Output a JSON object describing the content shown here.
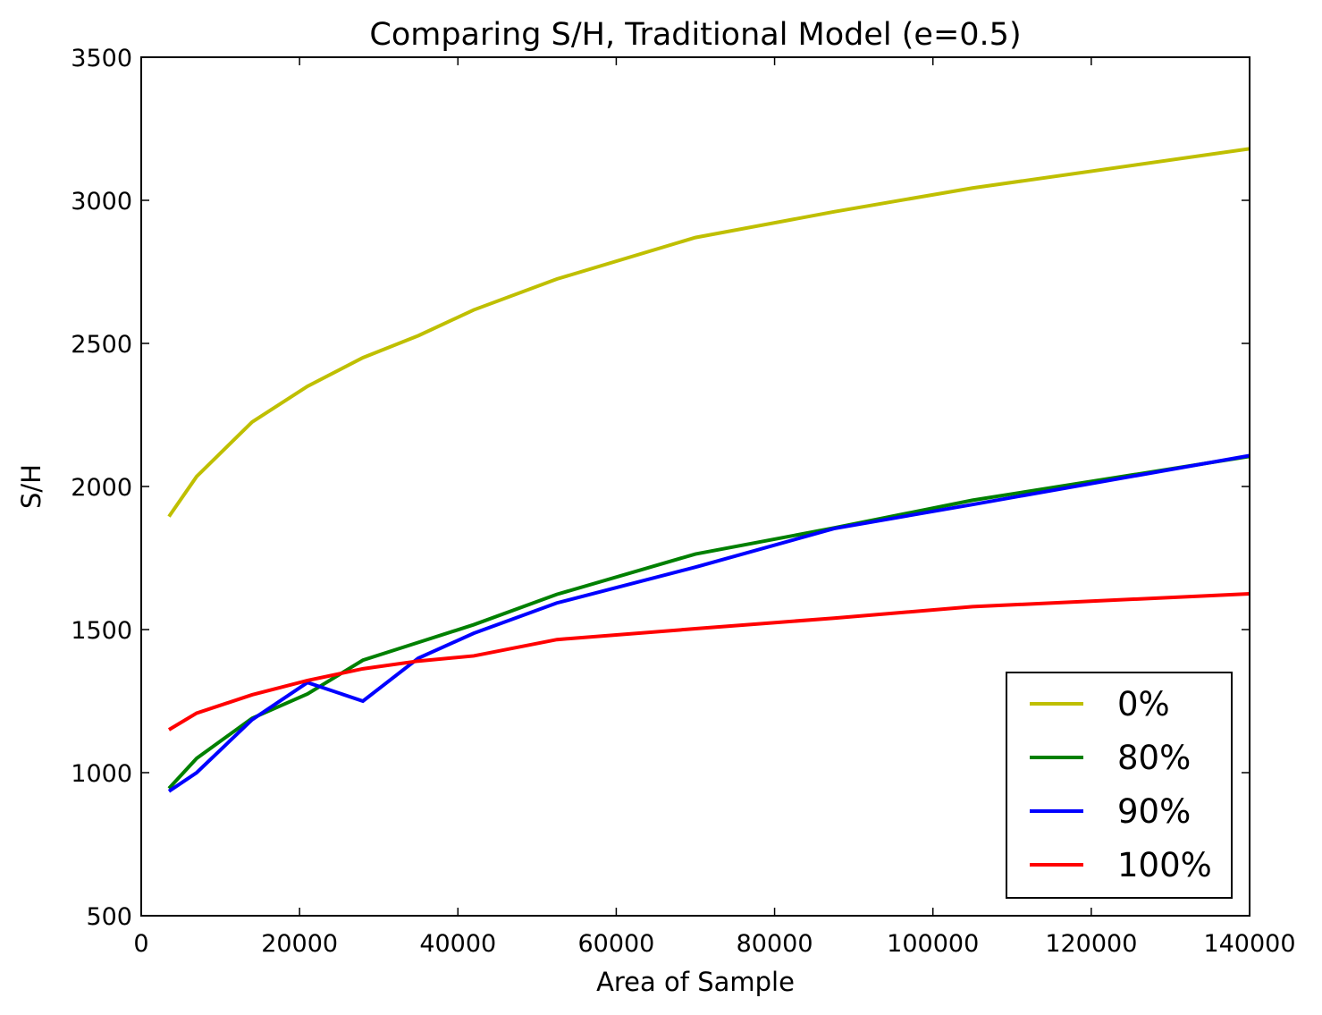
{
  "chart_data": {
    "type": "line",
    "title": "Comparing S/H, Traditional Model (e=0.5)",
    "xlabel": "Area of Sample",
    "ylabel": "S/H",
    "xlim": [
      0,
      140000
    ],
    "ylim": [
      500,
      3500
    ],
    "xticks": [
      "0",
      "20000",
      "40000",
      "60000",
      "80000",
      "100000",
      "120000",
      "140000"
    ],
    "yticks": [
      "500",
      "1000",
      "1500",
      "2000",
      "2500",
      "3000",
      "3500"
    ],
    "grid": false,
    "legend_position": "lower-right",
    "series": [
      {
        "name": "0%",
        "color": "#bfbf00",
        "points": [
          [
            3500,
            1895
          ],
          [
            7000,
            2035
          ],
          [
            14000,
            2225
          ],
          [
            21000,
            2350
          ],
          [
            28000,
            2450
          ],
          [
            35000,
            2527
          ],
          [
            42000,
            2617
          ],
          [
            52500,
            2725
          ],
          [
            70000,
            2870
          ],
          [
            87500,
            2960
          ],
          [
            105000,
            3043
          ],
          [
            140000,
            3180
          ]
        ]
      },
      {
        "name": "80%",
        "color": "#008000",
        "points": [
          [
            3500,
            945
          ],
          [
            7000,
            1050
          ],
          [
            14000,
            1190
          ],
          [
            21000,
            1275
          ],
          [
            28000,
            1393
          ],
          [
            35000,
            1455
          ],
          [
            42000,
            1517
          ],
          [
            52500,
            1623
          ],
          [
            70000,
            1764
          ],
          [
            87500,
            1855
          ],
          [
            105000,
            1952
          ],
          [
            140000,
            2105
          ]
        ]
      },
      {
        "name": "90%",
        "color": "#0000ff",
        "points": [
          [
            3500,
            935
          ],
          [
            7000,
            1000
          ],
          [
            14000,
            1185
          ],
          [
            21000,
            1315
          ],
          [
            28000,
            1250
          ],
          [
            35000,
            1400
          ],
          [
            42000,
            1487
          ],
          [
            52500,
            1593
          ],
          [
            70000,
            1718
          ],
          [
            87500,
            1853
          ],
          [
            105000,
            1937
          ],
          [
            140000,
            2108
          ]
        ]
      },
      {
        "name": "100%",
        "color": "#ff0000",
        "points": [
          [
            3500,
            1150
          ],
          [
            7000,
            1208
          ],
          [
            14000,
            1272
          ],
          [
            21000,
            1322
          ],
          [
            28000,
            1363
          ],
          [
            35000,
            1390
          ],
          [
            42000,
            1408
          ],
          [
            52500,
            1465
          ],
          [
            70000,
            1503
          ],
          [
            87500,
            1540
          ],
          [
            105000,
            1580
          ],
          [
            140000,
            1625
          ]
        ]
      }
    ]
  }
}
